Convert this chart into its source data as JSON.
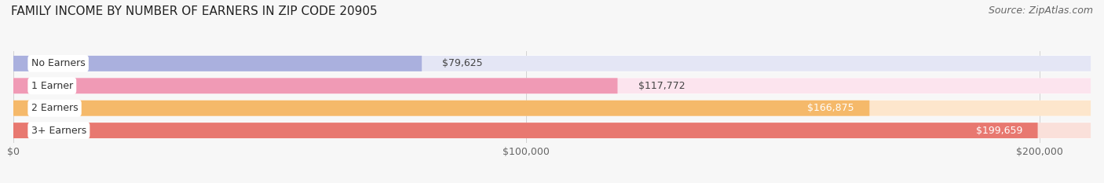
{
  "title": "FAMILY INCOME BY NUMBER OF EARNERS IN ZIP CODE 20905",
  "source": "Source: ZipAtlas.com",
  "categories": [
    "No Earners",
    "1 Earner",
    "2 Earners",
    "3+ Earners"
  ],
  "values": [
    79625,
    117772,
    166875,
    199659
  ],
  "bar_colors": [
    "#aab0de",
    "#f09ab5",
    "#f5b96a",
    "#e87870"
  ],
  "bar_bg_colors": [
    "#e4e6f5",
    "#fce4ee",
    "#fde6cc",
    "#fae0da"
  ],
  "value_labels": [
    "$79,625",
    "$117,772",
    "$166,875",
    "$199,659"
  ],
  "value_inside": [
    false,
    false,
    true,
    true
  ],
  "xlim": [
    0,
    210000
  ],
  "xticks": [
    0,
    100000,
    200000
  ],
  "xtick_labels": [
    "$0",
    "$100,000",
    "$200,000"
  ],
  "title_fontsize": 11,
  "source_fontsize": 9,
  "label_fontsize": 9,
  "val_fontsize": 9,
  "tick_fontsize": 9,
  "figsize": [
    14.06,
    2.33
  ],
  "dpi": 100,
  "background_color": "#f7f7f7"
}
